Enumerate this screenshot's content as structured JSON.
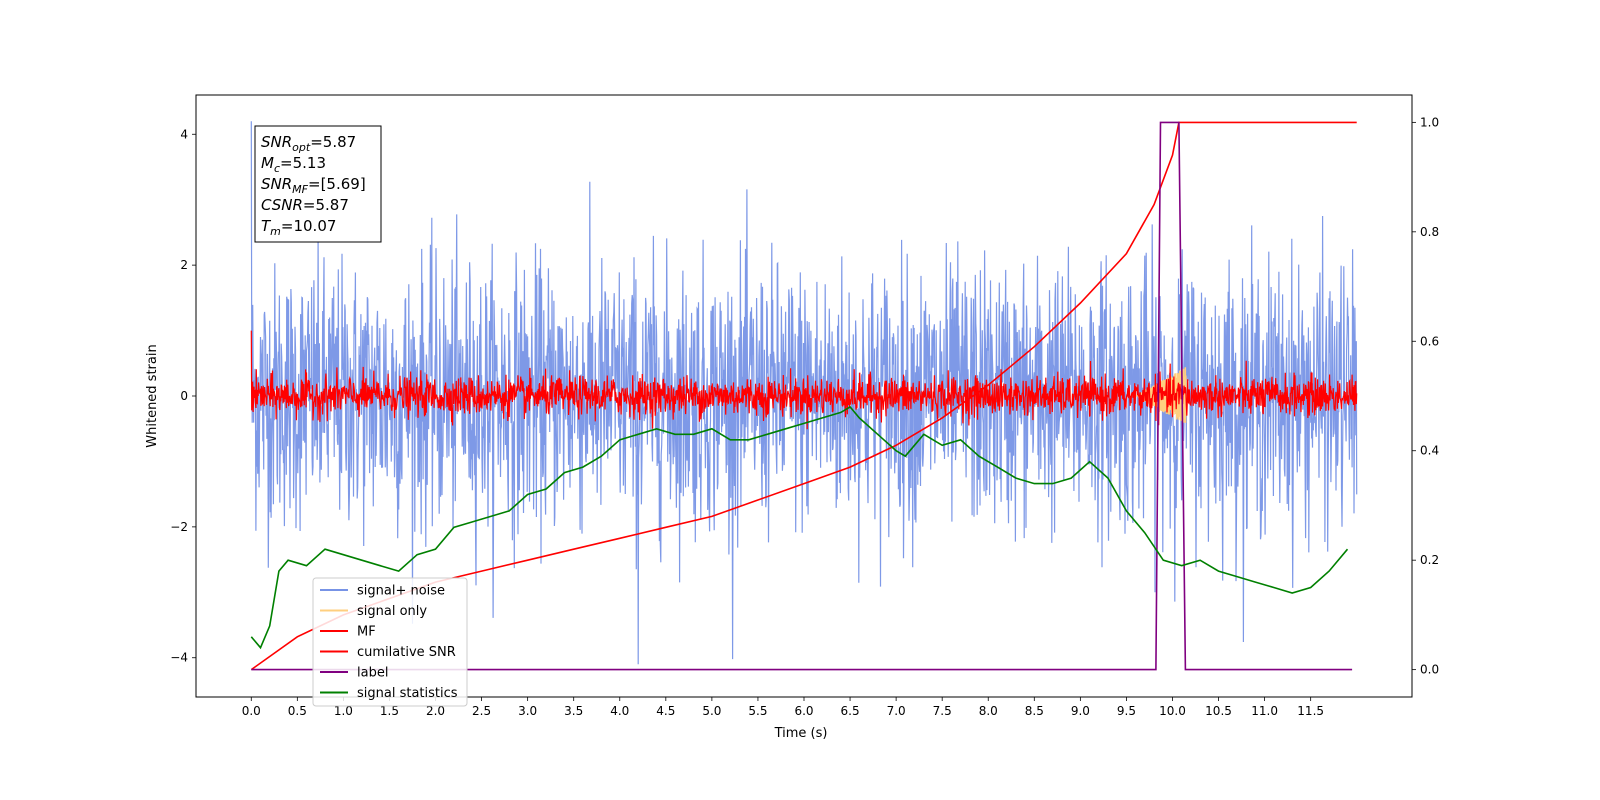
{
  "chart_data": {
    "type": "line",
    "xlabel": "Time (s)",
    "ylabel": "Whitened strain",
    "xlim": [
      -0.6,
      12.6
    ],
    "ylim": [
      -4.6,
      4.6
    ],
    "y2lim": [
      -0.05,
      1.05
    ],
    "x_ticks": [
      0.0,
      0.5,
      1.0,
      1.5,
      2.0,
      2.5,
      3.0,
      3.5,
      4.0,
      4.5,
      5.0,
      5.5,
      6.0,
      6.5,
      7.0,
      7.5,
      8.0,
      8.5,
      9.0,
      9.5,
      10.0,
      10.5,
      11.0,
      11.5
    ],
    "x_tick_labels": [
      "0.0",
      "0.5",
      "1.0",
      "1.5",
      "2.0",
      "2.5",
      "3.0",
      "3.5",
      "4.0",
      "4.5",
      "5.0",
      "5.5",
      "6.0",
      "6.5",
      "7.0",
      "7.5",
      "8.0",
      "8.5",
      "9.0",
      "9.5",
      "10.0",
      "10.5",
      "11.0",
      "11.5"
    ],
    "y_ticks": [
      -4,
      -2,
      0,
      2,
      4
    ],
    "y_tick_labels": [
      "−4",
      "−2",
      "0",
      "2",
      "4"
    ],
    "y2_ticks": [
      0.0,
      0.2,
      0.4,
      0.6,
      0.8,
      1.0
    ],
    "y2_tick_labels": [
      "0.0",
      "0.2",
      "0.4",
      "0.6",
      "0.8",
      "1.0"
    ],
    "grid": false,
    "legend_position": "lower-left",
    "annotation": {
      "lines": [
        {
          "symbol": "SNR",
          "sub": "opt",
          "value": "=5.87"
        },
        {
          "symbol": "M",
          "sub": "c",
          "value": "=5.13"
        },
        {
          "symbol": "SNR",
          "sub": "MF",
          "value": "=[5.69]"
        },
        {
          "symbol": "CSNR",
          "sub": "",
          "value": "=5.87"
        },
        {
          "symbol": "T",
          "sub": "m",
          "value": "=10.07"
        }
      ]
    },
    "series": [
      {
        "name": "signal+ noise",
        "axis": "left",
        "color": "#7793e6",
        "style": "noise",
        "x_range": [
          0.0,
          12.0
        ],
        "center": 0.0,
        "amplitude_sd": 1.0,
        "extremes": [
          4.2,
          -4.1
        ]
      },
      {
        "name": "signal only",
        "axis": "left",
        "color": "#ffcf7f",
        "style": "chirp",
        "x_range": [
          9.6,
          10.15
        ],
        "peak_amplitude": 0.45
      },
      {
        "name": "MF",
        "axis": "left",
        "color": "#ff0000",
        "style": "noise",
        "x_range": [
          0.0,
          12.0
        ],
        "center": 0.0,
        "amplitude_sd": 0.15,
        "extremes": [
          1.0,
          -0.25
        ]
      },
      {
        "name": "cumilative SNR",
        "axis": "right",
        "color": "#ff0000",
        "x": [
          0.0,
          0.5,
          1.0,
          1.5,
          2.0,
          2.5,
          3.0,
          3.5,
          4.0,
          4.5,
          5.0,
          5.5,
          6.0,
          6.5,
          7.0,
          7.5,
          8.0,
          8.5,
          9.0,
          9.5,
          9.8,
          10.0,
          10.07,
          10.5,
          11.0,
          11.5,
          12.0
        ],
        "values": [
          0.0,
          0.06,
          0.1,
          0.13,
          0.16,
          0.18,
          0.2,
          0.22,
          0.24,
          0.26,
          0.28,
          0.31,
          0.34,
          0.37,
          0.41,
          0.46,
          0.52,
          0.59,
          0.67,
          0.76,
          0.85,
          0.94,
          1.0,
          1.0,
          1.0,
          1.0,
          1.0
        ]
      },
      {
        "name": "label",
        "axis": "right",
        "color": "#800080",
        "x": [
          0.0,
          9.82,
          9.87,
          10.07,
          10.14,
          11.95
        ],
        "values": [
          0.0,
          0.0,
          1.0,
          1.0,
          0.0,
          0.0
        ]
      },
      {
        "name": "signal statistics",
        "axis": "right",
        "color": "#008000",
        "x": [
          0.0,
          0.1,
          0.2,
          0.3,
          0.4,
          0.6,
          0.8,
          1.0,
          1.2,
          1.4,
          1.6,
          1.8,
          2.0,
          2.2,
          2.4,
          2.6,
          2.8,
          3.0,
          3.2,
          3.4,
          3.6,
          3.8,
          4.0,
          4.2,
          4.4,
          4.6,
          4.8,
          5.0,
          5.2,
          5.4,
          5.6,
          5.8,
          6.0,
          6.2,
          6.4,
          6.5,
          6.6,
          6.8,
          7.0,
          7.1,
          7.3,
          7.5,
          7.7,
          7.9,
          8.1,
          8.3,
          8.5,
          8.7,
          8.9,
          9.1,
          9.3,
          9.5,
          9.7,
          9.9,
          10.1,
          10.3,
          10.5,
          10.7,
          10.9,
          11.1,
          11.3,
          11.5,
          11.7,
          11.9
        ],
        "values": [
          0.06,
          0.04,
          0.08,
          0.18,
          0.2,
          0.19,
          0.22,
          0.21,
          0.2,
          0.19,
          0.18,
          0.21,
          0.22,
          0.26,
          0.27,
          0.28,
          0.29,
          0.32,
          0.33,
          0.36,
          0.37,
          0.39,
          0.42,
          0.43,
          0.44,
          0.43,
          0.43,
          0.44,
          0.42,
          0.42,
          0.43,
          0.44,
          0.45,
          0.46,
          0.47,
          0.48,
          0.46,
          0.43,
          0.4,
          0.39,
          0.43,
          0.41,
          0.42,
          0.39,
          0.37,
          0.35,
          0.34,
          0.34,
          0.35,
          0.38,
          0.35,
          0.29,
          0.25,
          0.2,
          0.19,
          0.2,
          0.18,
          0.17,
          0.16,
          0.15,
          0.14,
          0.15,
          0.18,
          0.22
        ]
      }
    ]
  }
}
